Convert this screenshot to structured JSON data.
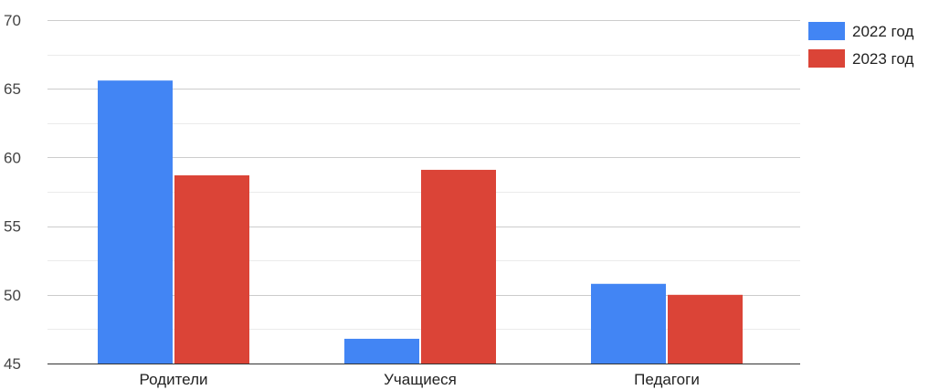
{
  "chart_data": {
    "type": "bar",
    "categories": [
      "Родители",
      "Учащиеся",
      "Педагоги"
    ],
    "series": [
      {
        "name": "2022 год",
        "color": "#4285f4",
        "values": [
          65.6,
          46.8,
          50.8
        ]
      },
      {
        "name": "2023 год",
        "color": "#db4437",
        "values": [
          58.7,
          59.1,
          50.0
        ]
      }
    ],
    "ylim": [
      45,
      70
    ],
    "yticks": [
      "45",
      "50",
      "55",
      "60",
      "65",
      "70"
    ],
    "grid": true,
    "legend_position": "top-right",
    "title": "",
    "xlabel": "",
    "ylabel": ""
  }
}
